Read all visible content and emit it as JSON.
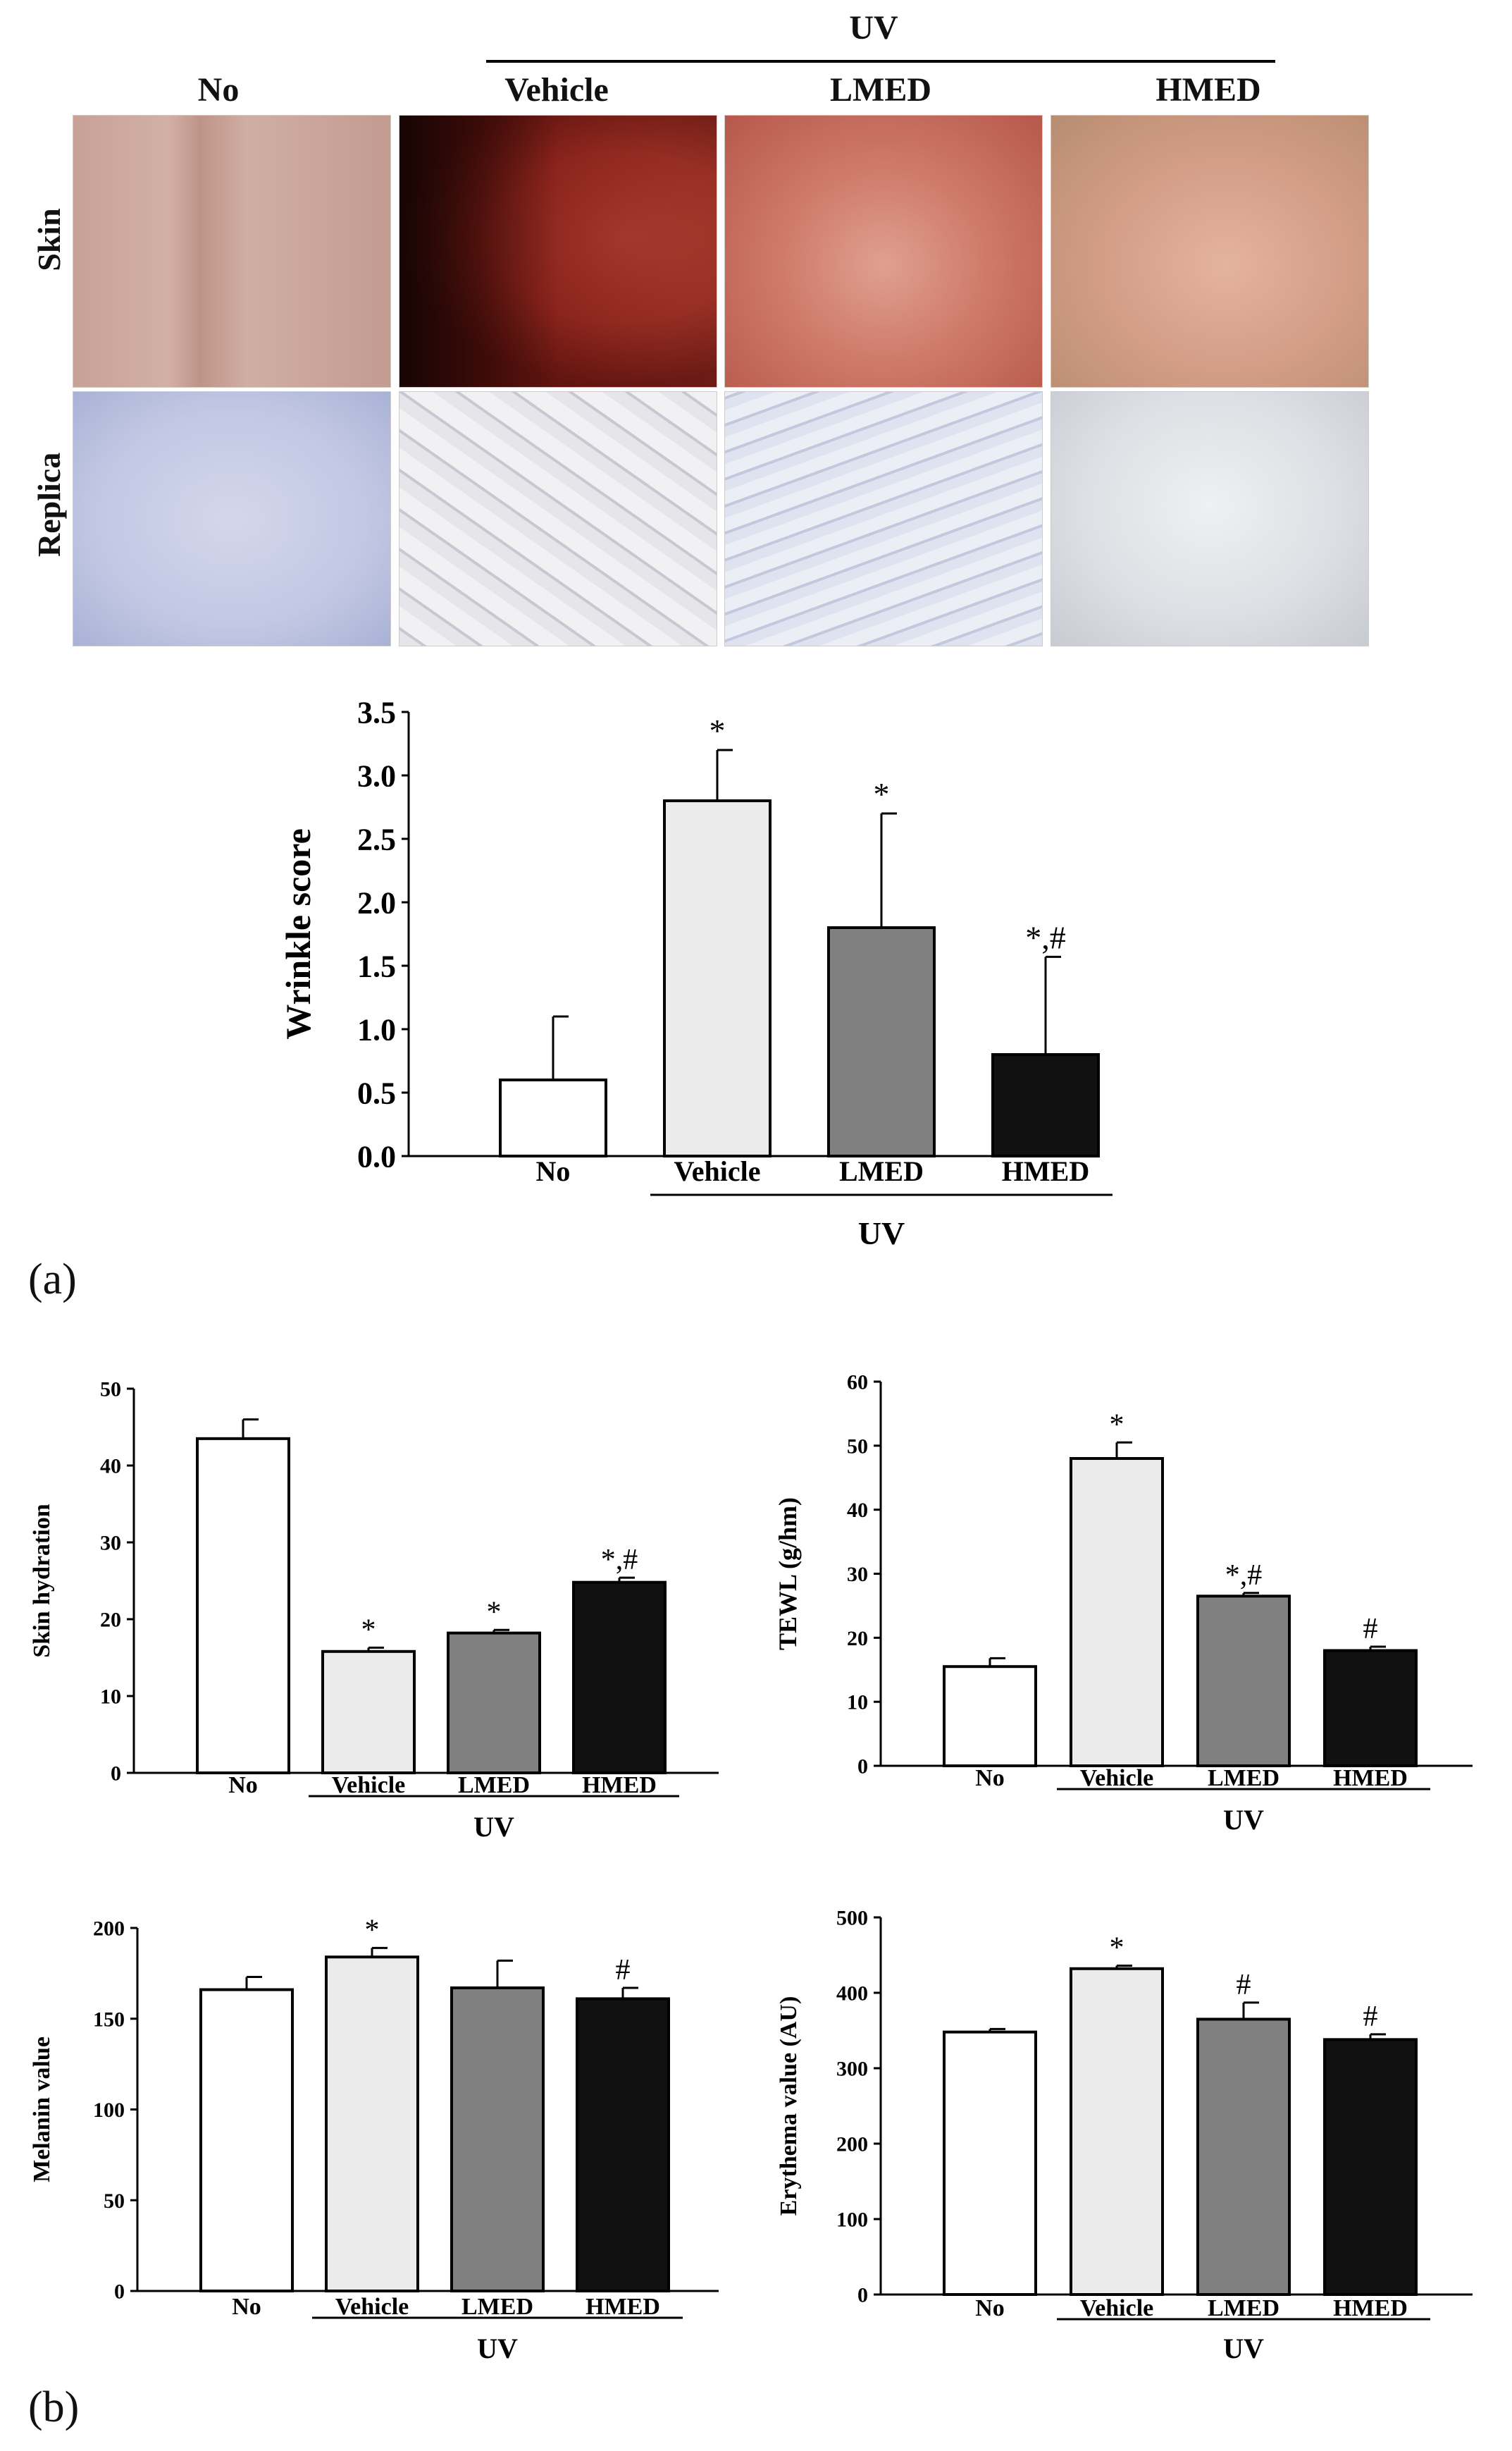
{
  "panel_a": {
    "label": "(a)",
    "header": {
      "uv": "UV",
      "columns": [
        "No",
        "Vehicle",
        "LMED",
        "HMED"
      ]
    },
    "rows": [
      "Skin",
      "Replica"
    ],
    "colors": {
      "skin_no": "#c9a398",
      "skin_vehicle": "#b85c52",
      "skin_lmed": "#c9776a",
      "skin_hmed": "#cfa089",
      "replica_no": "#c3c9e4",
      "replica_vehicle": "#d9d9e0",
      "replica_lmed": "#ccd0e4",
      "replica_hmed": "#dcdee3"
    }
  },
  "panel_b": {
    "label": "(b)"
  },
  "chart_data": [
    {
      "id": "wrinkle",
      "type": "bar",
      "ylabel": "Wrinkle  score",
      "categories": [
        "No",
        "Vehicle",
        "LMED",
        "HMED"
      ],
      "group_label": "UV",
      "values": [
        0.6,
        2.8,
        1.8,
        0.8
      ],
      "errors": [
        0.5,
        0.4,
        0.9,
        0.77
      ],
      "annotations": [
        "",
        "*",
        "*",
        "*,#"
      ],
      "ylim": [
        0,
        3.5
      ],
      "ticks": [
        "0.0",
        "0.5",
        "1.0",
        "1.5",
        "2.0",
        "2.5",
        "3.0",
        "3.5"
      ],
      "bar_colors": [
        "#ffffff",
        "#ebebeb",
        "#808080",
        "#111111"
      ]
    },
    {
      "id": "hydration",
      "type": "bar",
      "ylabel": "Skin hydration",
      "categories": [
        "No",
        "Vehicle",
        "LMED",
        "HMED"
      ],
      "group_label": "UV",
      "values": [
        43.5,
        15.8,
        18.2,
        24.8
      ],
      "errors": [
        2.5,
        0.5,
        0.4,
        0.6
      ],
      "annotations": [
        "",
        "*",
        "*",
        "*,#"
      ],
      "ylim": [
        0,
        50
      ],
      "ticks": [
        "0",
        "10",
        "20",
        "30",
        "40",
        "50"
      ],
      "bar_colors": [
        "#ffffff",
        "#ebebeb",
        "#808080",
        "#111111"
      ]
    },
    {
      "id": "tewl",
      "type": "bar",
      "ylabel": "TEWL  (g/hm)",
      "categories": [
        "No",
        "Vehicle",
        "LMED",
        "HMED"
      ],
      "group_label": "UV",
      "values": [
        15.5,
        48,
        26.5,
        18
      ],
      "errors": [
        1.3,
        2.5,
        0.5,
        0.6
      ],
      "annotations": [
        "",
        "*",
        "*,#",
        "#"
      ],
      "ylim": [
        0,
        60
      ],
      "ticks": [
        "0",
        "10",
        "20",
        "30",
        "40",
        "50",
        "60"
      ],
      "bar_colors": [
        "#ffffff",
        "#ebebeb",
        "#808080",
        "#111111"
      ]
    },
    {
      "id": "melanin",
      "type": "bar",
      "ylabel": "Melanin value",
      "categories": [
        "No",
        "Vehicle",
        "LMED",
        "HMED"
      ],
      "group_label": "UV",
      "values": [
        166,
        184,
        167,
        161
      ],
      "errors": [
        7,
        5,
        15,
        6
      ],
      "annotations": [
        "",
        "*",
        "",
        "#"
      ],
      "ylim": [
        0,
        200
      ],
      "ticks": [
        "0",
        "50",
        "100",
        "150",
        "200"
      ],
      "bar_colors": [
        "#ffffff",
        "#ebebeb",
        "#808080",
        "#111111"
      ]
    },
    {
      "id": "erythema",
      "type": "bar",
      "ylabel": "Erythema  value (AU)",
      "categories": [
        "No",
        "Vehicle",
        "LMED",
        "HMED"
      ],
      "group_label": "UV",
      "values": [
        348,
        432,
        365,
        338
      ],
      "errors": [
        4,
        4,
        22,
        7
      ],
      "annotations": [
        "",
        "*",
        "#",
        "#"
      ],
      "ylim": [
        0,
        500
      ],
      "ticks": [
        "0",
        "100",
        "200",
        "300",
        "400",
        "500"
      ],
      "bar_colors": [
        "#ffffff",
        "#ebebeb",
        "#808080",
        "#111111"
      ]
    }
  ]
}
